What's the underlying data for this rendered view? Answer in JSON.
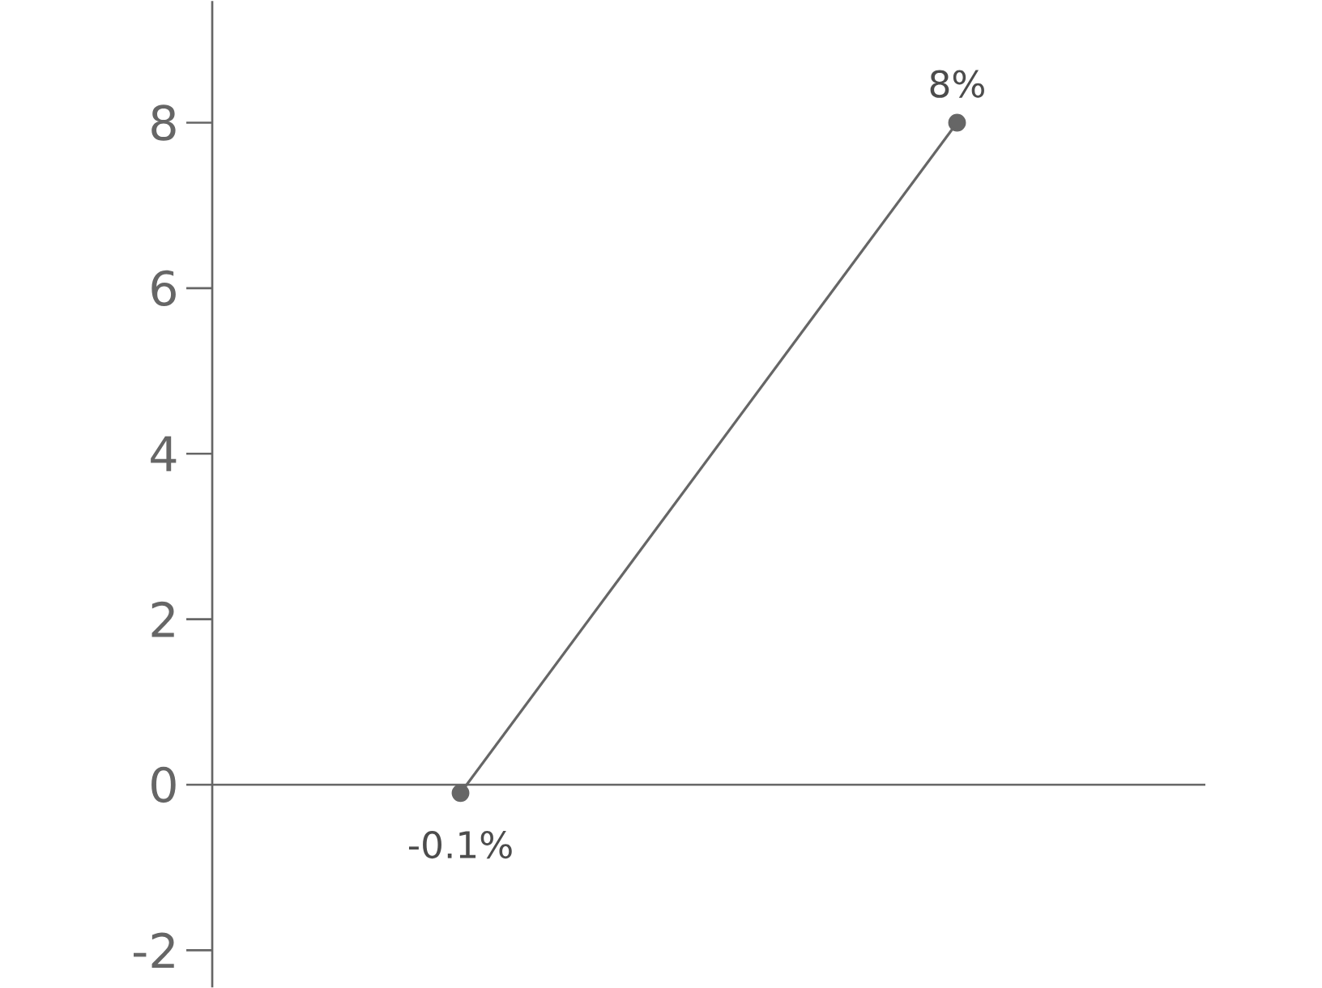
{
  "chart_data": {
    "type": "line",
    "categories": [
      null,
      null
    ],
    "values": [
      -0.1,
      8
    ],
    "value_labels": [
      "-0.1%",
      "8%"
    ],
    "color": "#666666",
    "marker": "circle",
    "ylim": [
      -2.45,
      9.47
    ],
    "yticks": [
      -2,
      0,
      2,
      4,
      6,
      8
    ]
  }
}
